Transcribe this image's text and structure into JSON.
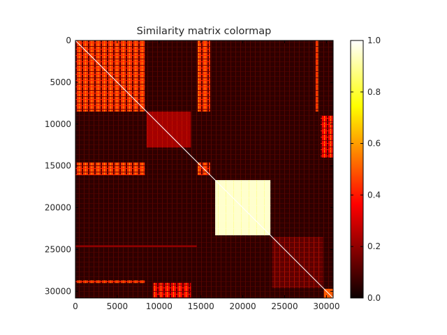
{
  "chart_data": {
    "type": "heatmap",
    "title": "Similarity matrix colormap",
    "xlabel": "",
    "ylabel": "",
    "colormap": "hot",
    "x_range": [
      0,
      30800
    ],
    "y_range": [
      0,
      30800
    ],
    "y_inverted": true,
    "x_ticks": [
      0,
      5000,
      10000,
      15000,
      20000,
      25000,
      30000
    ],
    "y_ticks": [
      0,
      5000,
      10000,
      15000,
      20000,
      25000,
      30000
    ],
    "colorbar": {
      "range": [
        0.0,
        1.0
      ],
      "ticks": [
        "0.0",
        "0.2",
        "0.4",
        "0.6",
        "0.8",
        "1.0"
      ]
    },
    "blocks": [
      {
        "x": [
          0,
          8300
        ],
        "y": [
          0,
          8500
        ],
        "value": 0.45,
        "texture": "stripes"
      },
      {
        "x": [
          14600,
          16100
        ],
        "y": [
          0,
          8500
        ],
        "value": 0.45,
        "texture": "stripes"
      },
      {
        "x": [
          0,
          8300
        ],
        "y": [
          14600,
          16100
        ],
        "value": 0.45,
        "texture": "stripes"
      },
      {
        "x": [
          14600,
          16100
        ],
        "y": [
          14600,
          16100
        ],
        "value": 0.45,
        "texture": "stripes"
      },
      {
        "x": [
          8500,
          13800
        ],
        "y": [
          8500,
          12800
        ],
        "value": 0.22,
        "texture": "sparse"
      },
      {
        "x": [
          16700,
          23300
        ],
        "y": [
          16700,
          23300
        ],
        "value": 0.95,
        "texture": "solid"
      },
      {
        "x": [
          23500,
          29600
        ],
        "y": [
          23500,
          29600
        ],
        "value": 0.12,
        "texture": "sparse"
      },
      {
        "x": [
          29700,
          30800
        ],
        "y": [
          29700,
          30800
        ],
        "value": 0.5,
        "texture": "solid"
      },
      {
        "x": [
          0,
          8300
        ],
        "y": [
          28700,
          29000
        ],
        "value": 0.45,
        "texture": "stripes"
      },
      {
        "x": [
          28700,
          29000
        ],
        "y": [
          0,
          8500
        ],
        "value": 0.45,
        "texture": "stripes"
      },
      {
        "x": [
          0,
          14500
        ],
        "y": [
          24500,
          24700
        ],
        "value": 0.2,
        "texture": "solid"
      },
      {
        "x": [
          9300,
          13800
        ],
        "y": [
          29000,
          30800
        ],
        "value": 0.35,
        "texture": "stripes"
      },
      {
        "x": [
          29300,
          30800
        ],
        "y": [
          9000,
          14000
        ],
        "value": 0.35,
        "texture": "stripes"
      }
    ],
    "background_value": 0.05,
    "diagonal_value": 1.0
  }
}
